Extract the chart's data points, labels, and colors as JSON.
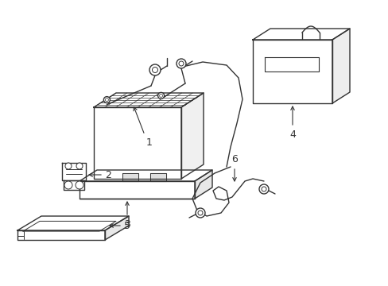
{
  "bg_color": "#ffffff",
  "line_color": "#333333",
  "line_width": 1.0,
  "fig_width": 4.89,
  "fig_height": 3.6,
  "dpi": 100
}
